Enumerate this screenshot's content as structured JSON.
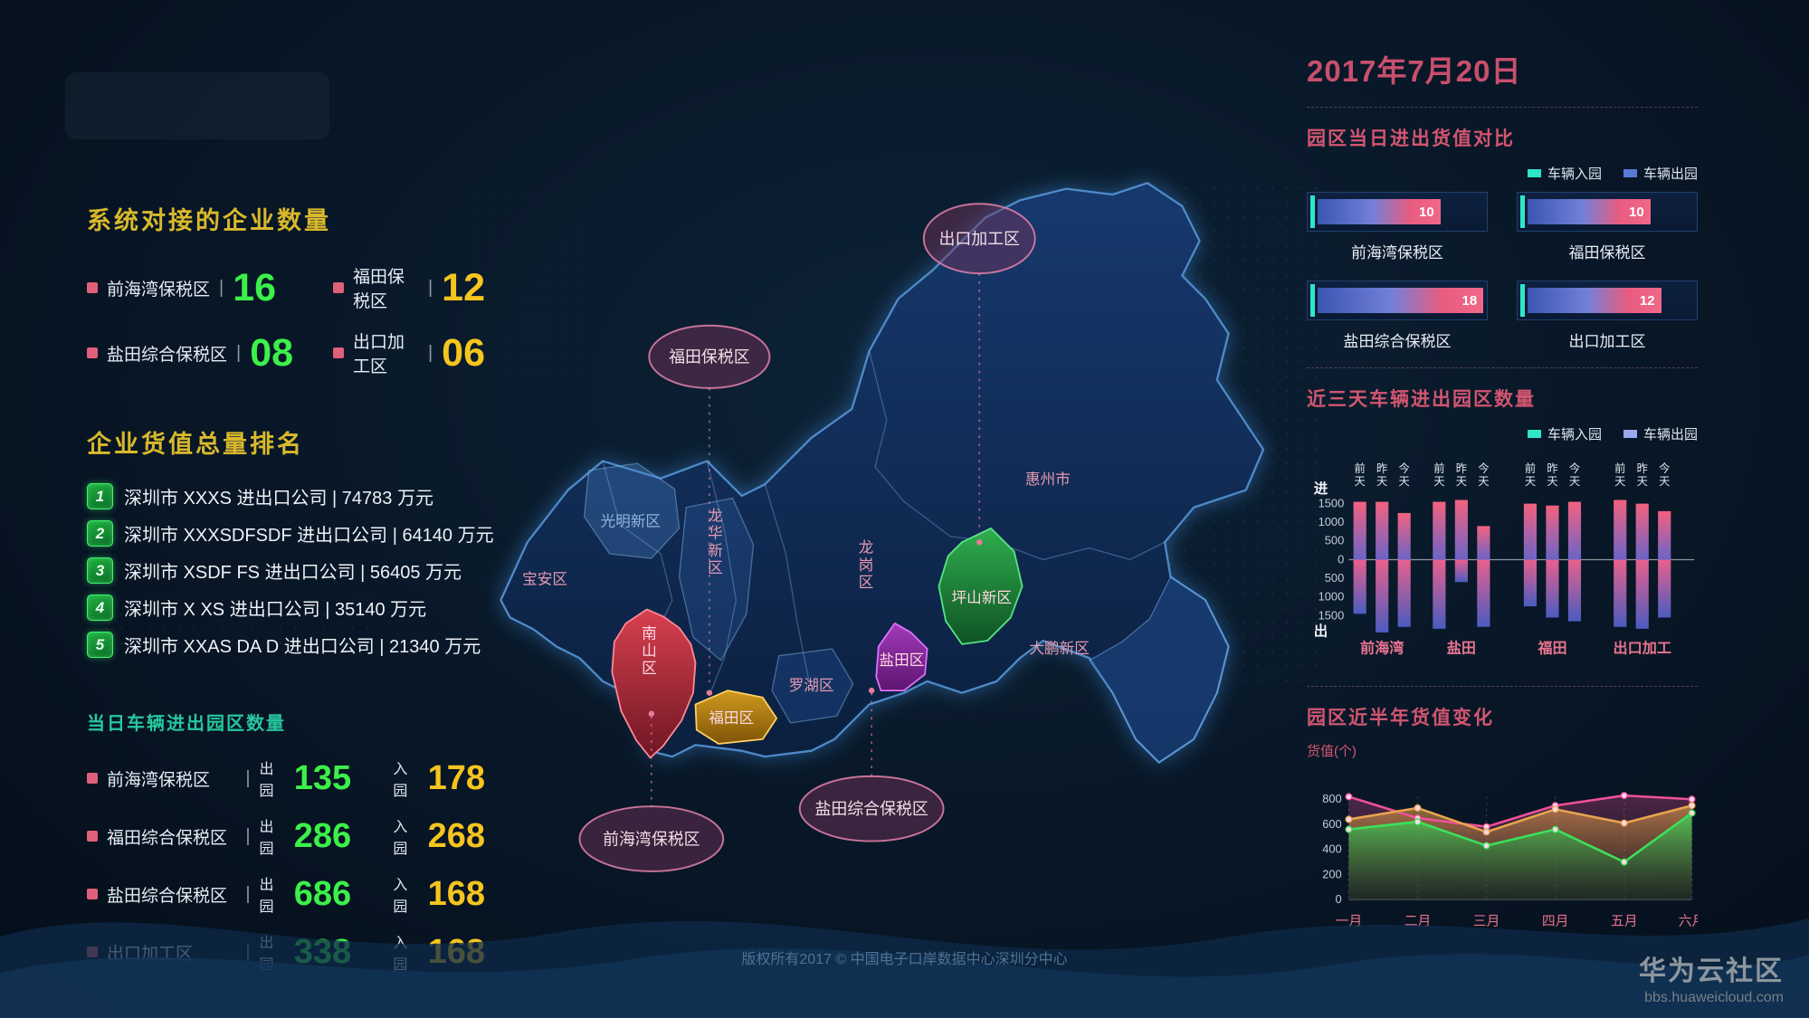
{
  "date": "2017年7月20日",
  "footer": "版权所有2017 © 中国电子口岸数据中心深圳分中心",
  "watermark": {
    "name": "华为云社区",
    "site": "bbs.huaweicloud.com"
  },
  "colors": {
    "green_value": "#3cf04a",
    "yellow_value": "#f5c51e",
    "pink_accent": "#d25570",
    "teal_accent": "#27c79d",
    "gold_heading": "#d9b92c",
    "bullet_pink": "#e0607a"
  },
  "enterprise_panel": {
    "title": "系统对接的企业数量",
    "items": [
      {
        "label": "前海湾保税区",
        "value": "16",
        "color": "green"
      },
      {
        "label": "福田保税区",
        "value": "12",
        "color": "yellow"
      },
      {
        "label": "盐田综合保税区",
        "value": "08",
        "color": "green"
      },
      {
        "label": "出口加工区",
        "value": "06",
        "color": "yellow"
      }
    ]
  },
  "ranking_panel": {
    "title": "企业货值总量排名",
    "items": [
      {
        "rank": "1",
        "text": "深圳市 XXXS 进出口公司 | 74783 万元"
      },
      {
        "rank": "2",
        "text": "深圳市 XXXSDFSDF 进出口公司 | 64140 万元"
      },
      {
        "rank": "3",
        "text": "深圳市 XSDF FS 进出口公司 | 56405 万元"
      },
      {
        "rank": "4",
        "text": "深圳市 X XS 进出口公司 | 35140 万元"
      },
      {
        "rank": "5",
        "text": "深圳市 XXAS DA D 进出口公司 | 21340 万元"
      }
    ]
  },
  "vehicle_panel": {
    "title": "当日车辆进出园区数量",
    "out_label": "出园",
    "in_label": "入园",
    "rows": [
      {
        "label": "前海湾保税区",
        "out": "135",
        "in": "178"
      },
      {
        "label": "福田综合保税区",
        "out": "286",
        "in": "268"
      },
      {
        "label": "盐田综合保税区",
        "out": "686",
        "in": "168"
      },
      {
        "label": "出口加工区",
        "out": "338",
        "in": "168"
      }
    ]
  },
  "map": {
    "labels": {
      "guangming": "光明新区",
      "baoan": "宝安区",
      "longhua": "龙华新区",
      "longgang": "龙岗区",
      "luohu": "罗湖区",
      "futian": "福田区",
      "nanshan": "南山区",
      "yantian": "盐田区",
      "pingshan": "坪山新区",
      "dapeng": "大鹏新区",
      "huizhou": "惠州市"
    },
    "callouts": {
      "export_zone": "出口加工区",
      "futian_ftz": "福田保税区",
      "qianhai_ftz": "前海湾保税区",
      "yantian_ftz": "盐田综合保税区"
    }
  },
  "compare_panel": {
    "title": "园区当日进出货值对比",
    "legend": [
      {
        "label": "车辆入园",
        "color": "#2ee6c8"
      },
      {
        "label": "车辆出园",
        "color": "#5a78d8"
      }
    ],
    "gauges": [
      {
        "label": "前海湾保税区",
        "value": 10
      },
      {
        "label": "福田保税区",
        "value": 10
      },
      {
        "label": "盐田综合保税区",
        "value": 18
      },
      {
        "label": "出口加工区",
        "value": 12
      }
    ]
  },
  "threeday_panel": {
    "title": "近三天车辆进出园区数量",
    "legend": [
      {
        "label": "车辆入园",
        "color": "#2ee6c8"
      },
      {
        "label": "车辆出园",
        "color": "#9aa8f0"
      }
    ],
    "in_axis": "进",
    "out_axis": "出",
    "y_ticks": [
      "1500",
      "1000",
      "500",
      "0",
      "500",
      "1000",
      "1500"
    ],
    "days": [
      "前天",
      "昨天",
      "今天"
    ],
    "groups": [
      {
        "label": "前海湾",
        "in": [
          1550,
          1550,
          1250
        ],
        "out": [
          1450,
          1950,
          1800
        ]
      },
      {
        "label": "盐田",
        "in": [
          1550,
          1600,
          900
        ],
        "out": [
          1850,
          600,
          1800
        ]
      },
      {
        "label": "福田",
        "in": [
          1500,
          1450,
          1550
        ],
        "out": [
          1250,
          1550,
          1650
        ]
      },
      {
        "label": "出口加工",
        "in": [
          1600,
          1500,
          1300
        ],
        "out": [
          1800,
          1850,
          1550
        ]
      }
    ]
  },
  "halfyear_panel": {
    "title": "园区近半年货值变化",
    "y_label": "货值(个)",
    "y_ticks": [
      "800",
      "600",
      "400",
      "200",
      "0"
    ],
    "months": [
      "一月",
      "二月",
      "三月",
      "四月",
      "五月",
      "六月"
    ],
    "series": [
      {
        "name": "series-pink",
        "color": "#f0509a",
        "values": [
          820,
          650,
          580,
          750,
          830,
          800
        ]
      },
      {
        "name": "series-orange",
        "color": "#e8a44e",
        "values": [
          640,
          730,
          540,
          720,
          610,
          750
        ]
      },
      {
        "name": "series-green",
        "color": "#3ce05a",
        "values": [
          560,
          620,
          430,
          560,
          300,
          690
        ]
      }
    ]
  },
  "chart_data": [
    {
      "type": "bar",
      "title": "园区当日进出货值对比",
      "categories": [
        "前海湾保税区",
        "福田保税区",
        "盐田综合保税区",
        "出口加工区"
      ],
      "values": [
        10,
        10,
        18,
        12
      ],
      "legend": [
        "车辆入园",
        "车辆出园"
      ]
    },
    {
      "type": "bar",
      "title": "近三天车辆进出园区数量",
      "categories": [
        "前海湾",
        "盐田",
        "福田",
        "出口加工"
      ],
      "x_sub": [
        "前天",
        "昨天",
        "今天"
      ],
      "series": [
        {
          "name": "进(车辆入园)",
          "values": [
            [
              1550,
              1550,
              1250
            ],
            [
              1550,
              1600,
              900
            ],
            [
              1500,
              1450,
              1550
            ],
            [
              1600,
              1500,
              1300
            ]
          ]
        },
        {
          "name": "出(车辆出园)",
          "values": [
            [
              1450,
              1950,
              1800
            ],
            [
              1850,
              600,
              1800
            ],
            [
              1250,
              1550,
              1650
            ],
            [
              1800,
              1850,
              1550
            ]
          ]
        }
      ],
      "ylim": [
        -1500,
        1500
      ]
    },
    {
      "type": "area",
      "title": "园区近半年货值变化",
      "x": [
        "一月",
        "二月",
        "三月",
        "四月",
        "五月",
        "六月"
      ],
      "ylabel": "货值(个)",
      "ylim": [
        0,
        800
      ],
      "series": [
        {
          "name": "series-pink",
          "values": [
            820,
            650,
            580,
            750,
            830,
            800
          ]
        },
        {
          "name": "series-orange",
          "values": [
            640,
            730,
            540,
            720,
            610,
            750
          ]
        },
        {
          "name": "series-green",
          "values": [
            560,
            620,
            430,
            560,
            300,
            690
          ]
        }
      ]
    }
  ]
}
